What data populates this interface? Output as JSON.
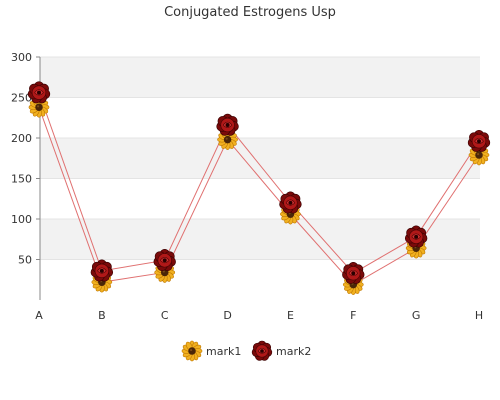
{
  "chart_data": {
    "type": "line",
    "title": "Conjugated Estrogens Usp",
    "categories": [
      "A",
      "B",
      "C",
      "D",
      "E",
      "F",
      "G",
      "H"
    ],
    "ylim": [
      0,
      300
    ],
    "yticks": [
      50,
      100,
      150,
      200,
      250,
      300
    ],
    "grid": "horizontal bands",
    "legend_position": "bottom",
    "series": [
      {
        "name": "mark1",
        "values": [
          238,
          22,
          34,
          198,
          106,
          19,
          64,
          179
        ],
        "color": "#e07070",
        "marker_icon": "sunflower-icon",
        "marker_colors": {
          "petal": "#f0b020",
          "petal_edge": "#c07800",
          "center": "#4a2608"
        }
      },
      {
        "name": "mark2",
        "values": [
          256,
          36,
          49,
          216,
          120,
          33,
          78,
          196
        ],
        "color": "#e07070",
        "marker_icon": "rose-icon",
        "marker_colors": {
          "outer": "#7a0a0a",
          "inner": "#b01818",
          "highlight": "#d03030"
        }
      }
    ]
  }
}
